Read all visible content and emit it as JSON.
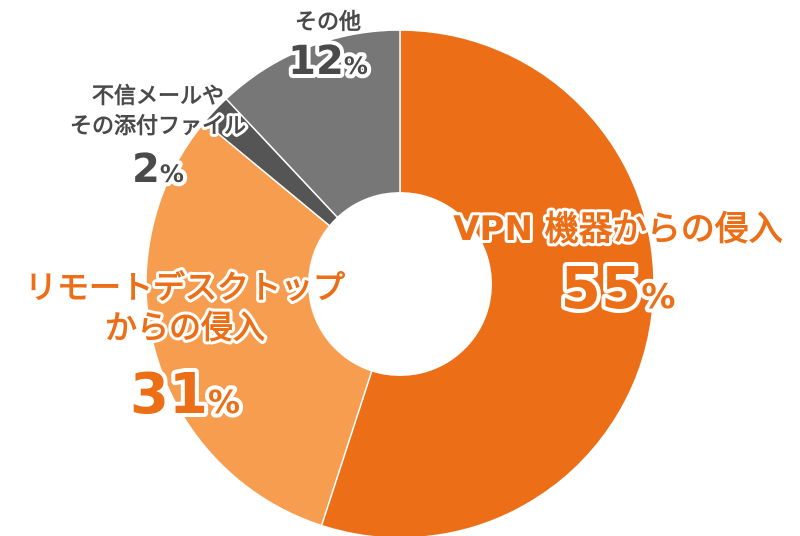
{
  "chart_data": {
    "type": "pie",
    "donut": true,
    "legend": "none",
    "slices": [
      {
        "name": "VPN 機器からの侵入",
        "label_lines": [
          "VPN 機器からの侵入"
        ],
        "value": 55,
        "value_text": "55",
        "unit": "%",
        "color": "#ec6f18",
        "label_color": "#ec6f18"
      },
      {
        "name": "リモートデスクトップからの侵入",
        "label_lines": [
          "リモートデスクトップ",
          "からの侵入"
        ],
        "value": 31,
        "value_text": "31",
        "unit": "%",
        "color": "#f79d50",
        "label_color": "#ec6f18"
      },
      {
        "name": "不信メールやその添付ファイル",
        "label_lines": [
          "不信メールや",
          "その添付ファイル"
        ],
        "value": 2,
        "value_text": "2",
        "unit": "%",
        "color": "#555555",
        "label_color": "#4a4a4a"
      },
      {
        "name": "その他",
        "label_lines": [
          "その他"
        ],
        "value": 12,
        "value_text": "12",
        "unit": "%",
        "color": "#777777",
        "label_color": "#4a4a4a"
      }
    ]
  }
}
